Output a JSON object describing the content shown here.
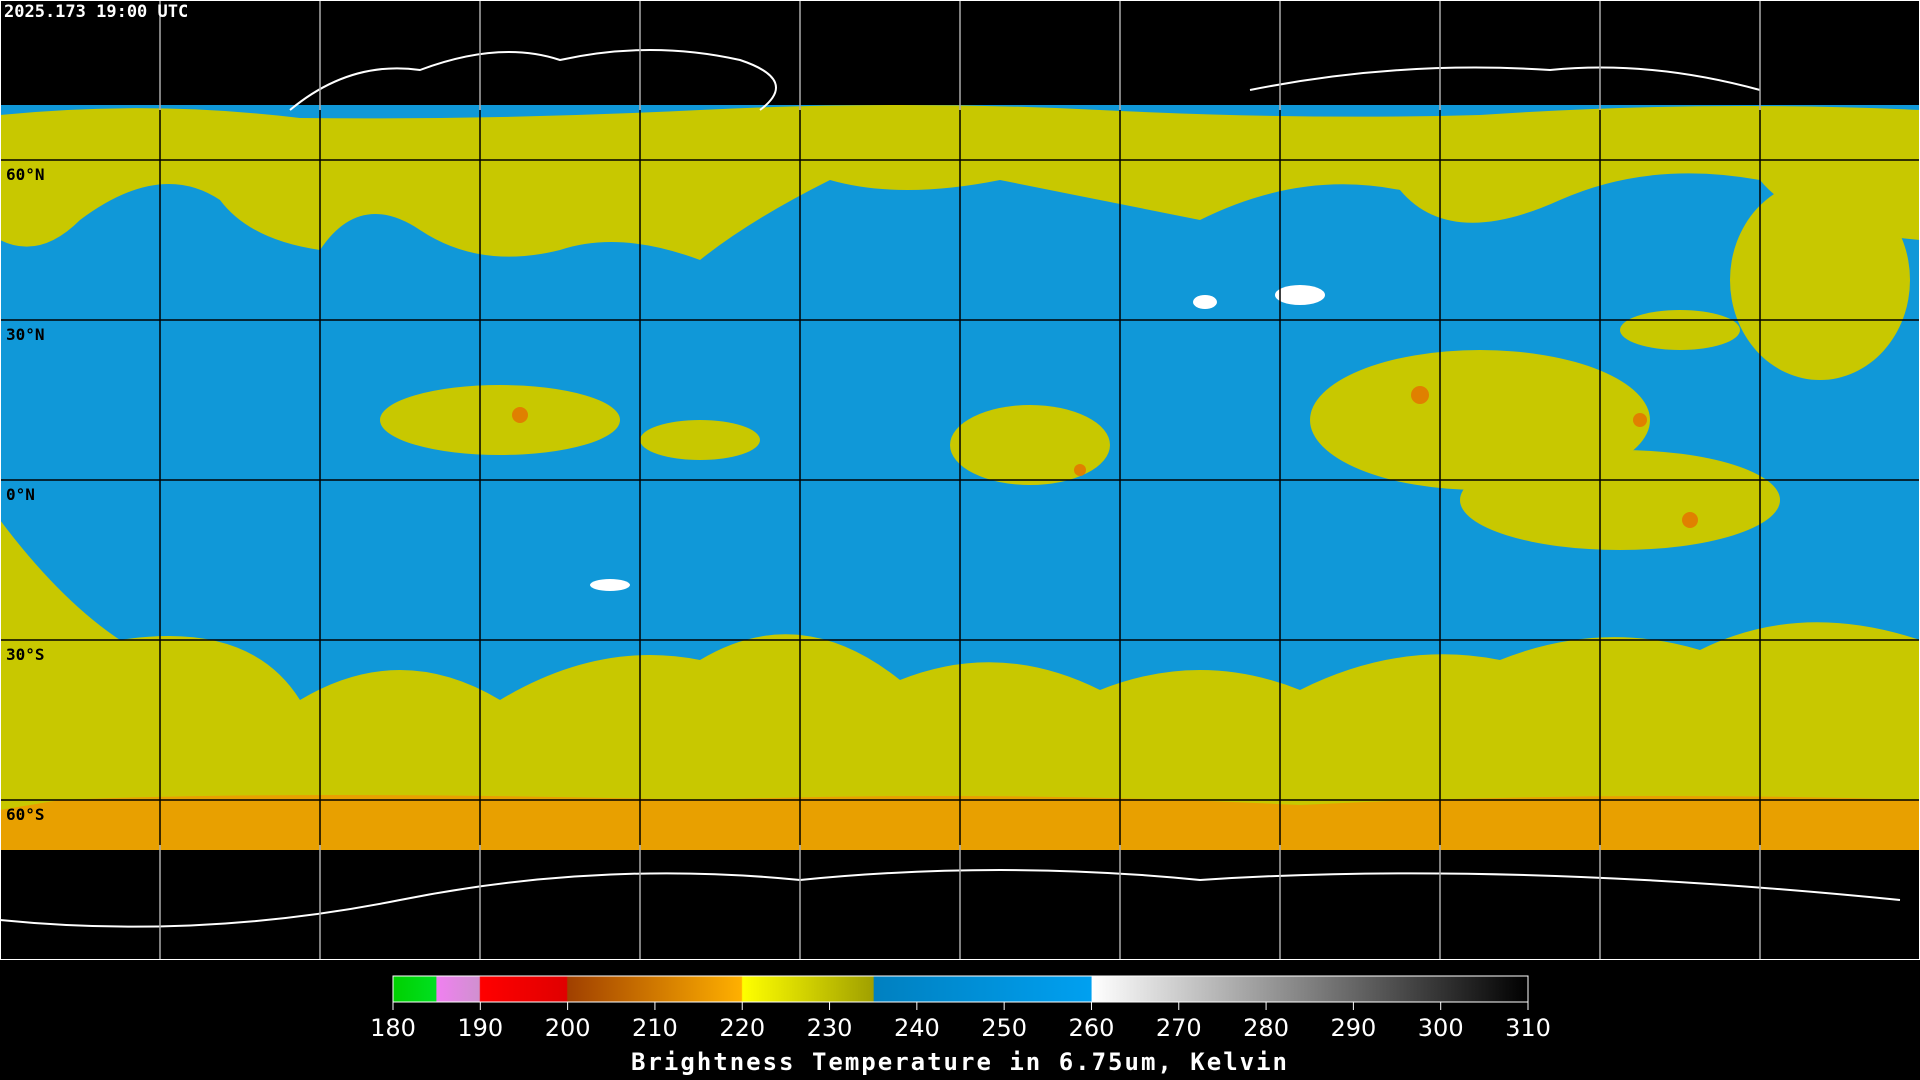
{
  "header": {
    "timestamp": "2025.173 19:00 UTC"
  },
  "map": {
    "latitude_labels": [
      "60°N",
      "30°N",
      "0°N",
      "30°S",
      "60°S"
    ]
  },
  "colorbar": {
    "ticks": [
      180,
      190,
      200,
      210,
      220,
      230,
      240,
      250,
      260,
      270,
      280,
      290,
      300,
      310
    ],
    "title": "Brightness Temperature in 6.75um, Kelvin"
  }
}
